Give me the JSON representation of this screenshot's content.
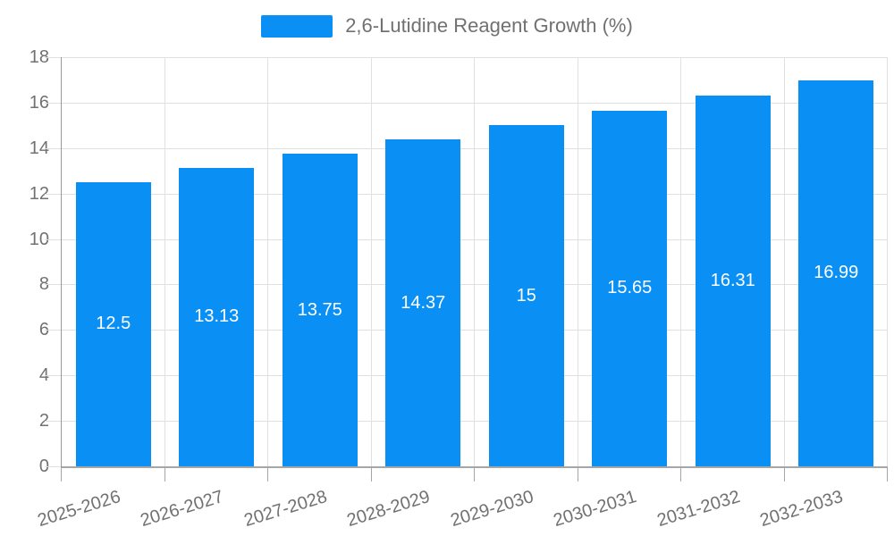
{
  "legend": {
    "label": "2,6-Lutidine Reagent Growth (%)"
  },
  "chart_data": {
    "type": "bar",
    "title": "2,6-Lutidine Reagent Growth (%)",
    "series_name": "2,6-Lutidine Reagent Growth (%)",
    "categories": [
      "2025-2026",
      "2026-2027",
      "2027-2028",
      "2028-2029",
      "2029-2030",
      "2030-2031",
      "2031-2032",
      "2032-2033"
    ],
    "values": [
      12.5,
      13.13,
      13.75,
      14.37,
      15,
      15.65,
      16.31,
      16.99
    ],
    "value_labels": [
      "12.5",
      "13.13",
      "13.75",
      "14.37",
      "15",
      "15.65",
      "16.31",
      "16.99"
    ],
    "xlabel": "",
    "ylabel": "",
    "ylim": [
      0,
      18
    ],
    "ytick_step": 2,
    "ytick_labels": [
      "0",
      "2",
      "4",
      "6",
      "8",
      "10",
      "12",
      "14",
      "16",
      "18"
    ],
    "grid": true,
    "legend_position": "top",
    "value_label_position": "inside-center",
    "xtick_rotation_deg": -17
  },
  "colors": {
    "bar": "#0a90f5",
    "text_muted": "#717171",
    "grid": "#e0e0e0",
    "axis": "#999999",
    "value_label": "#ffffff"
  }
}
